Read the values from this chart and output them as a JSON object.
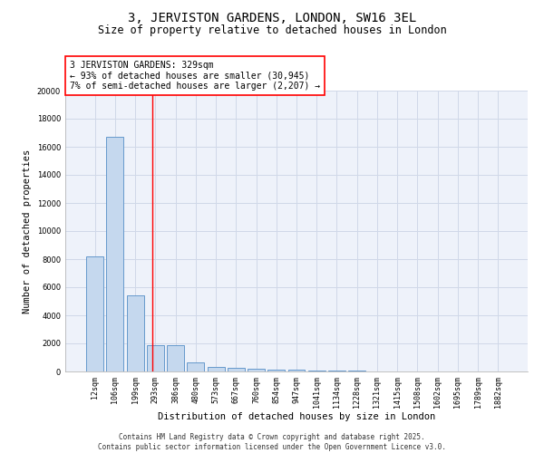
{
  "title1": "3, JERVISTON GARDENS, LONDON, SW16 3EL",
  "title2": "Size of property relative to detached houses in London",
  "xlabel": "Distribution of detached houses by size in London",
  "ylabel": "Number of detached properties",
  "bar_color": "#c5d8ee",
  "bar_edge_color": "#6699cc",
  "categories": [
    "12sqm",
    "106sqm",
    "199sqm",
    "293sqm",
    "386sqm",
    "480sqm",
    "573sqm",
    "667sqm",
    "760sqm",
    "854sqm",
    "947sqm",
    "1041sqm",
    "1134sqm",
    "1228sqm",
    "1321sqm",
    "1415sqm",
    "1508sqm",
    "1602sqm",
    "1695sqm",
    "1789sqm",
    "1882sqm"
  ],
  "values": [
    8200,
    16700,
    5400,
    1850,
    1850,
    650,
    350,
    230,
    170,
    130,
    100,
    70,
    55,
    40,
    30,
    25,
    18,
    15,
    12,
    10,
    8
  ],
  "red_line_x": 2.85,
  "annotation_text": "3 JERVISTON GARDENS: 329sqm\n← 93% of detached houses are smaller (30,945)\n7% of semi-detached houses are larger (2,207) →",
  "ylim": [
    0,
    20000
  ],
  "yticks": [
    0,
    2000,
    4000,
    6000,
    8000,
    10000,
    12000,
    14000,
    16000,
    18000,
    20000
  ],
  "background_color": "#eef2fa",
  "grid_color": "#d0d8e8",
  "footer_text": "Contains HM Land Registry data © Crown copyright and database right 2025.\nContains public sector information licensed under the Open Government Licence v3.0.",
  "title1_fontsize": 10,
  "title2_fontsize": 8.5,
  "annotation_fontsize": 7,
  "tick_fontsize": 6,
  "ylabel_fontsize": 7.5,
  "xlabel_fontsize": 7.5,
  "footer_fontsize": 5.5
}
